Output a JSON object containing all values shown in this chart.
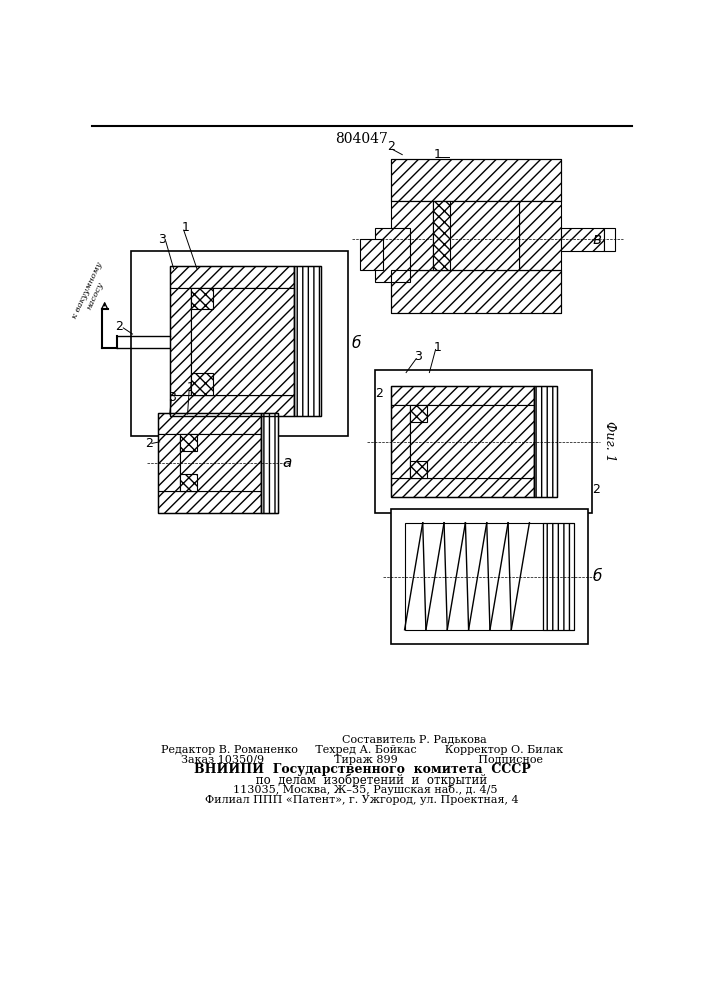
{
  "patent_number": "804047",
  "bg_color": "#ffffff",
  "line_color": "#000000",
  "footer_lines": [
    "Составитель Р. Радькова",
    "Редактор В. Романенко     Техред А. Бойкас        Корректор О. Билак",
    "Заказ 10350/9                    Тираж 899                       Подписное",
    "ВНИИПИ  Государственного  комитета  СССР",
    "     по  делам  изобретений  и  открытий",
    "  113035, Москва, Ж–35, Раушская наб., д. 4/5",
    "Филиал ППП «Патент», г. Ужгород, ул. Проектная, 4"
  ]
}
